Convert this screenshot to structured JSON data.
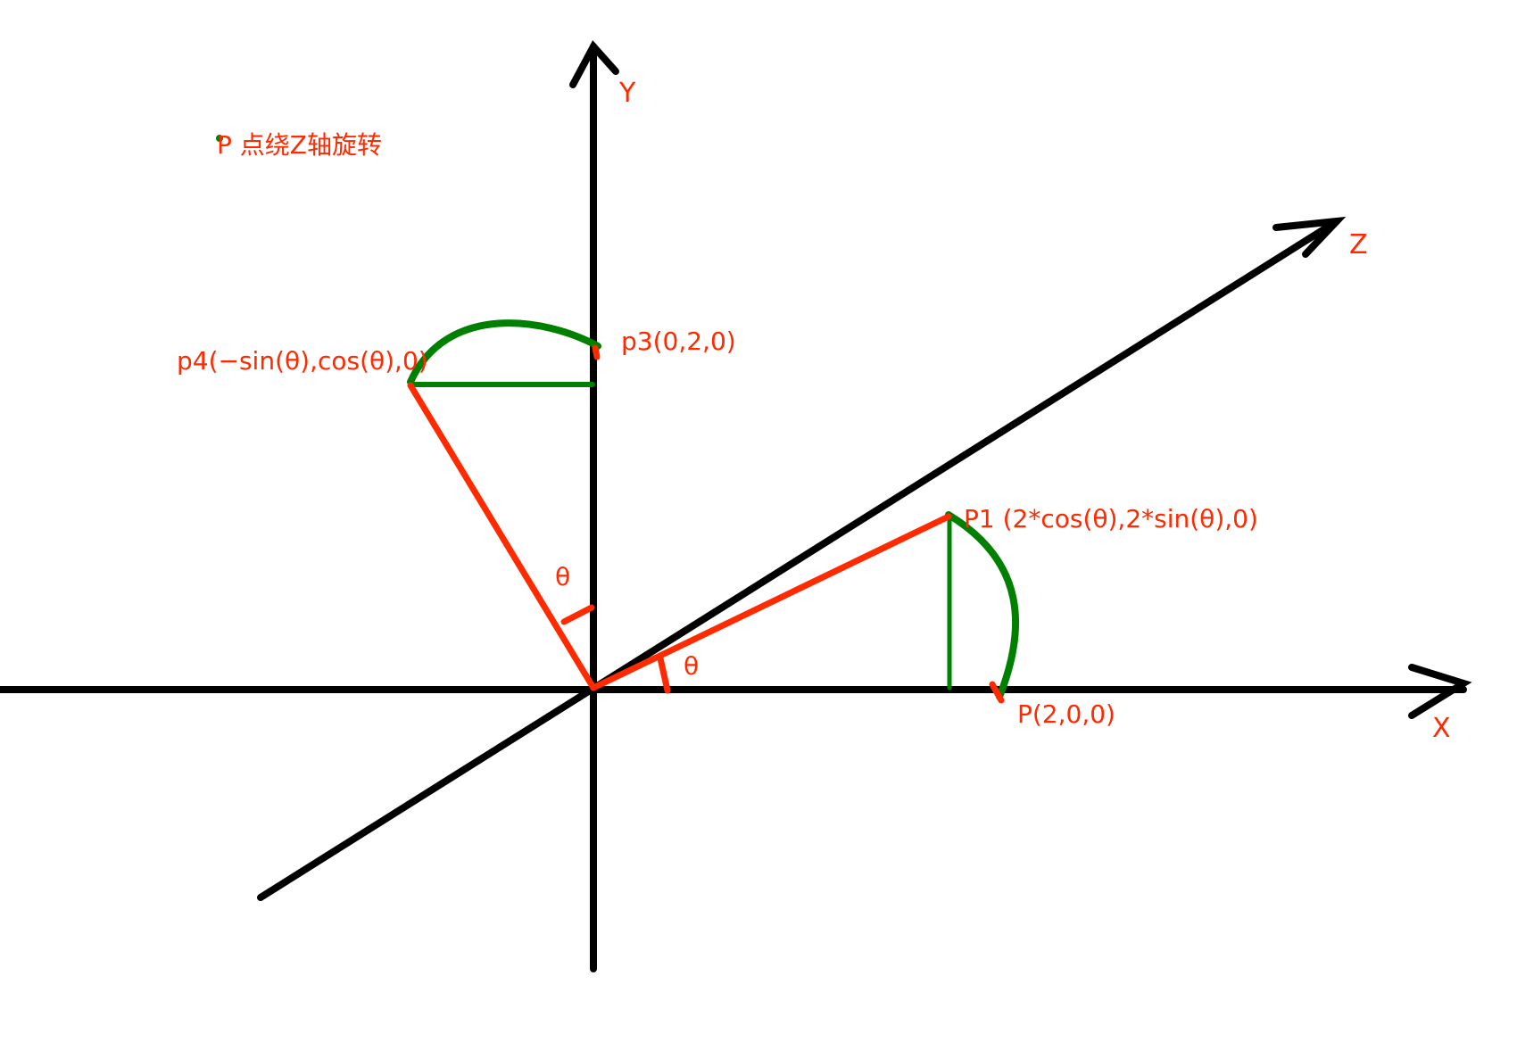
{
  "title": "P 点绕Z轴旋转",
  "axes": {
    "x_label": "X",
    "y_label": "Y",
    "z_label": "Z"
  },
  "points": {
    "p": "P(2,0,0)",
    "p1": "P1 (2*cos(θ),2*sin(θ),0)",
    "p3": "p3(0,2,0)",
    "p4": "p4(−sin(θ),cos(θ),0)"
  },
  "angles": {
    "theta_xy": "θ",
    "theta_y": "θ"
  },
  "colors": {
    "axis": "#000000",
    "label": "#ff2a00",
    "radius": "#ff2a00",
    "arc": "#008000"
  }
}
